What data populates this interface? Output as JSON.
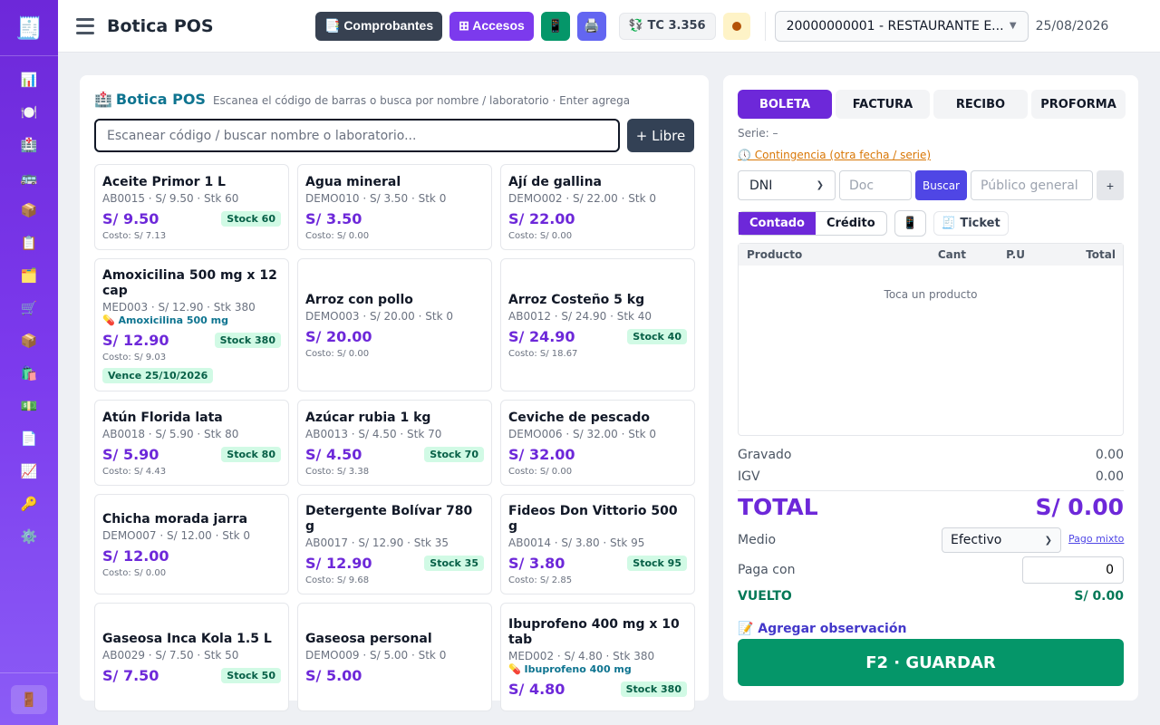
{
  "sidebar": {
    "logo_icon": "🧾",
    "items": [
      {
        "name": "dashboard",
        "icon": "📊"
      },
      {
        "name": "restaurant",
        "icon": "🍽️"
      },
      {
        "name": "pharmacy",
        "icon": "🏥"
      },
      {
        "name": "transport",
        "icon": "🚌"
      },
      {
        "name": "products",
        "icon": "📦"
      },
      {
        "name": "orders",
        "icon": "📋"
      },
      {
        "name": "folders",
        "icon": "🗂️"
      },
      {
        "name": "purchases",
        "icon": "🛒"
      },
      {
        "name": "inventory",
        "icon": "📦"
      },
      {
        "name": "sales",
        "icon": "🛍️"
      },
      {
        "name": "cash",
        "icon": "💵"
      },
      {
        "name": "documents",
        "icon": "📄"
      },
      {
        "name": "reports",
        "icon": "📈"
      },
      {
        "name": "keys",
        "icon": "🔑"
      },
      {
        "name": "settings",
        "icon": "⚙️"
      }
    ],
    "logout_icon": "🚪"
  },
  "header": {
    "title": "Botica POS",
    "comprobantes_label": "📑 Comprobantes",
    "accesos_label": "⊞ Accesos",
    "phone_icon": "📱",
    "printer_icon": "🖨️",
    "tc_label": "💱 TC 3.356",
    "company": "20000000001 - RESTAURANTE E...",
    "date": "25/08/2026"
  },
  "pos": {
    "title_icon": "🏥",
    "title": "Botica POS",
    "subtitle": "Escanea el código de barras o busca por nombre / laboratorio · Enter agrega",
    "search_placeholder": "Escanear código / buscar nombre o laboratorio...",
    "libre_label": "+ Libre"
  },
  "products": [
    {
      "name": "Aceite Primor 1 L",
      "info": "AB0015 · S/ 9.50 · Stk 60",
      "price": "S/ 9.50",
      "stock": "Stock 60",
      "cost": "Costo: S/ 7.13"
    },
    {
      "name": "Agua mineral",
      "info": "DEMO010 · S/ 3.50 · Stk 0",
      "price": "S/ 3.50",
      "cost": "Costo: S/ 0.00"
    },
    {
      "name": "Ají de gallina",
      "info": "DEMO002 · S/ 22.00 · Stk 0",
      "price": "S/ 22.00",
      "cost": "Costo: S/ 0.00"
    },
    {
      "name": "Amoxicilina 500 mg x 12 cap",
      "info": "MED003 · S/ 12.90 · Stk 380",
      "ingredient": "💊 Amoxicilina 500 mg",
      "price": "S/ 12.90",
      "stock": "Stock 380",
      "cost": "Costo: S/ 9.03",
      "expiry": "Vence 25/10/2026"
    },
    {
      "name": "Arroz con pollo",
      "info": "DEMO003 · S/ 20.00 · Stk 0",
      "price": "S/ 20.00",
      "cost": "Costo: S/ 0.00"
    },
    {
      "name": "Arroz Costeño 5 kg",
      "info": "AB0012 · S/ 24.90 · Stk 40",
      "price": "S/ 24.90",
      "stock": "Stock 40",
      "cost": "Costo: S/ 18.67"
    },
    {
      "name": "Atún Florida lata",
      "info": "AB0018 · S/ 5.90 · Stk 80",
      "price": "S/ 5.90",
      "stock": "Stock 80",
      "cost": "Costo: S/ 4.43"
    },
    {
      "name": "Azúcar rubia 1 kg",
      "info": "AB0013 · S/ 4.50 · Stk 70",
      "price": "S/ 4.50",
      "stock": "Stock 70",
      "cost": "Costo: S/ 3.38"
    },
    {
      "name": "Ceviche de pescado",
      "info": "DEMO006 · S/ 32.00 · Stk 0",
      "price": "S/ 32.00",
      "cost": "Costo: S/ 0.00"
    },
    {
      "name": "Chicha morada jarra",
      "info": "DEMO007 · S/ 12.00 · Stk 0",
      "price": "S/ 12.00",
      "cost": "Costo: S/ 0.00"
    },
    {
      "name": "Detergente Bolívar 780 g",
      "info": "AB0017 · S/ 12.90 · Stk 35",
      "price": "S/ 12.90",
      "stock": "Stock 35",
      "cost": "Costo: S/ 9.68"
    },
    {
      "name": "Fideos Don Vittorio 500 g",
      "info": "AB0014 · S/ 3.80 · Stk 95",
      "price": "S/ 3.80",
      "stock": "Stock 95",
      "cost": "Costo: S/ 2.85"
    },
    {
      "name": "Gaseosa Inca Kola 1.5 L",
      "info": "AB0029 · S/ 7.50 · Stk 50",
      "price": "S/ 7.50",
      "stock": "Stock 50",
      "cost": ""
    },
    {
      "name": "Gaseosa personal",
      "info": "DEMO009 · S/ 5.00 · Stk 0",
      "price": "S/ 5.00",
      "cost": ""
    },
    {
      "name": "Ibuprofeno 400 mg x 10 tab",
      "info": "MED002 · S/ 4.80 · Stk 380",
      "ingredient": "💊 Ibuprofeno 400 mg",
      "price": "S/ 4.80",
      "stock": "Stock 380",
      "cost": ""
    }
  ],
  "sale": {
    "doc_tabs": [
      "BOLETA",
      "FACTURA",
      "RECIBO",
      "PROFORMA"
    ],
    "active_tab": "BOLETA",
    "serie": "Serie: –",
    "contingencia": "🕔 Contingencia (otra fecha / serie)",
    "doc_type": "DNI",
    "doc_placeholder": "Doc",
    "buscar_label": "Buscar",
    "client_placeholder": "Público general (",
    "plus_label": "+",
    "contado_label": "Contado",
    "credito_label": "Crédito",
    "phone_icon": "📱",
    "ticket_label": "🧾 Ticket",
    "cart_headers": [
      "Producto",
      "Cant",
      "P.U",
      "Total"
    ],
    "cart_empty": "Toca un producto",
    "gravado_label": "Gravado",
    "gravado_value": "0.00",
    "igv_label": "IGV",
    "igv_value": "0.00",
    "total_label": "TOTAL",
    "total_value": "S/ 0.00",
    "medio_label": "Medio",
    "medio_value": "Efectivo",
    "pago_mixto": "Pago mixto",
    "paga_label": "Paga con",
    "paga_value": "0",
    "vuelto_label": "VUELTO",
    "vuelto_value": "S/ 0.00",
    "observacion": "📝 Agregar observación",
    "save_label": "F2 · GUARDAR"
  }
}
